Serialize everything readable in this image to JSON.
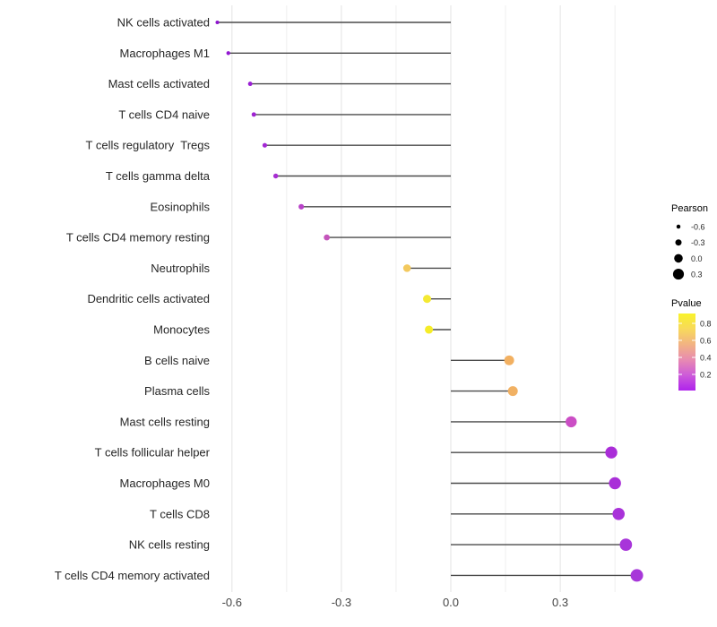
{
  "chart_data": {
    "type": "lollipop",
    "title": "",
    "xlabel": "",
    "ylabel": "",
    "grid": "vertical-only",
    "legend_position": "right",
    "x_axis": {
      "tick_labels": [
        "-0.6",
        "-0.3",
        "0.0",
        "0.3"
      ],
      "tick_values": [
        -0.6,
        -0.3,
        0.0,
        0.3
      ],
      "minor_values": [
        -0.45,
        -0.15,
        0.15,
        0.45
      ],
      "range": [
        -0.66,
        0.54
      ]
    },
    "points": [
      {
        "label": "NK cells activated",
        "pearson": -0.64,
        "color": "#8E15CE"
      },
      {
        "label": "Macrophages M1",
        "pearson": -0.61,
        "color": "#9318D2"
      },
      {
        "label": "Mast cells activated",
        "pearson": -0.55,
        "color": "#9A1FD4"
      },
      {
        "label": "T cells CD4 naive",
        "pearson": -0.54,
        "color": "#9F24D2"
      },
      {
        "label": "T cells regulatory  Tregs",
        "pearson": -0.51,
        "color": "#A328D4"
      },
      {
        "label": "T cells gamma delta",
        "pearson": -0.48,
        "color": "#A72ED2"
      },
      {
        "label": "Eosinophils",
        "pearson": -0.41,
        "color": "#B842C8"
      },
      {
        "label": "T cells CD4 memory resting",
        "pearson": -0.34,
        "color": "#C455BB"
      },
      {
        "label": "Neutrophils",
        "pearson": -0.12,
        "color": "#F3C95E"
      },
      {
        "label": "Dendritic cells activated",
        "pearson": -0.065,
        "color": "#F4E933"
      },
      {
        "label": "Monocytes",
        "pearson": -0.06,
        "color": "#F5EC28"
      },
      {
        "label": "B cells naive",
        "pearson": 0.16,
        "color": "#F2B061"
      },
      {
        "label": "Plasma cells",
        "pearson": 0.17,
        "color": "#F1B163"
      },
      {
        "label": "Mast cells resting",
        "pearson": 0.33,
        "color": "#CB4EC5"
      },
      {
        "label": "T cells follicular helper",
        "pearson": 0.44,
        "color": "#AA2DD8"
      },
      {
        "label": "Macrophages M0",
        "pearson": 0.45,
        "color": "#A92FD8"
      },
      {
        "label": "T cells CD8",
        "pearson": 0.46,
        "color": "#A932D9"
      },
      {
        "label": "NK cells resting",
        "pearson": 0.48,
        "color": "#A835DA"
      },
      {
        "label": "T cells CD4 memory activated",
        "pearson": 0.51,
        "color": "#A737D9"
      }
    ],
    "stem_color": "#4A4A4A",
    "gridline_major_color": "#E3E3E3",
    "gridline_minor_color": "#EFEFEF",
    "legend_size": {
      "title": "Pearson",
      "dot_color": "#000000",
      "entries": [
        {
          "label": "-0.6",
          "value": -0.6
        },
        {
          "label": "-0.3",
          "value": -0.3
        },
        {
          "label": "0.0",
          "value": 0.0
        },
        {
          "label": "0.3",
          "value": 0.3
        }
      ]
    },
    "legend_color": {
      "title": "Pvalue",
      "tick_labels": [
        "0.8",
        "0.6",
        "0.4",
        "0.2"
      ],
      "gradient_top_to_bottom": [
        "#F9F32B",
        "#F8D95B",
        "#F2B383",
        "#E88BB1",
        "#CD5BD9",
        "#AF23EC"
      ]
    }
  }
}
